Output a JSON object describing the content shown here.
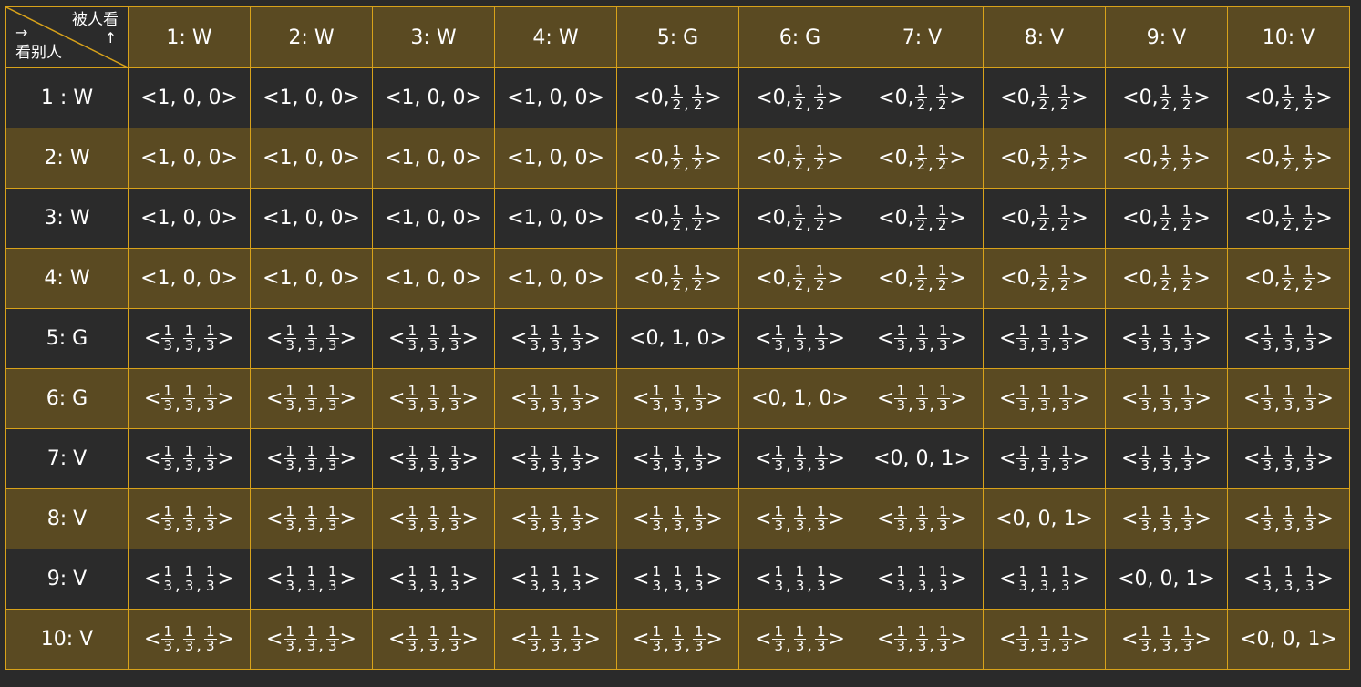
{
  "corner": {
    "top_label": "被人看",
    "up_arrow": "↑",
    "right_arrow": "→",
    "bottom_label": "看别人"
  },
  "columns": [
    "1: W",
    "2: W",
    "3: W",
    "4: W",
    "5: G",
    "6: G",
    "7: V",
    "8: V",
    "9: V",
    "10: V"
  ],
  "rows": [
    {
      "label": "1 : W",
      "cells": [
        "<1, 0, 0>",
        "<1, 0, 0>",
        "<1, 0, 0>",
        "<1, 0, 0>",
        "<0, 1/2, 1/2>",
        "<0, 1/2, 1/2>",
        "<0, 1/2, 1/2>",
        "<0, 1/2, 1/2>",
        "<0, 1/2, 1/2>",
        "<0, 1/2, 1/2>"
      ]
    },
    {
      "label": "2: W",
      "cells": [
        "<1, 0, 0>",
        "<1, 0, 0>",
        "<1, 0, 0>",
        "<1, 0, 0>",
        "<0, 1/2, 1/2>",
        "<0, 1/2, 1/2>",
        "<0, 1/2, 1/2>",
        "<0, 1/2, 1/2>",
        "<0, 1/2, 1/2>",
        "<0, 1/2, 1/2>"
      ]
    },
    {
      "label": "3: W",
      "cells": [
        "<1, 0, 0>",
        "<1, 0, 0>",
        "<1, 0, 0>",
        "<1, 0, 0>",
        "<0, 1/2, 1/2>",
        "<0, 1/2, 1/2>",
        "<0, 1/2, 1/2>",
        "<0, 1/2, 1/2>",
        "<0, 1/2, 1/2>",
        "<0, 1/2, 1/2>"
      ]
    },
    {
      "label": "4: W",
      "cells": [
        "<1, 0, 0>",
        "<1, 0, 0>",
        "<1, 0, 0>",
        "<1, 0, 0>",
        "<0, 1/2, 1/2>",
        "<0, 1/2, 1/2>",
        "<0, 1/2, 1/2>",
        "<0, 1/2, 1/2>",
        "<0, 1/2, 1/2>",
        "<0, 1/2, 1/2>"
      ]
    },
    {
      "label": "5: G",
      "cells": [
        "<1/3, 1/3, 1/3>",
        "<1/3, 1/3, 1/3>",
        "<1/3, 1/3, 1/3>",
        "<1/3, 1/3, 1/3>",
        "<0, 1, 0>",
        "<1/3, 1/3, 1/3>",
        "<1/3, 1/3, 1/3>",
        "<1/3, 1/3, 1/3>",
        "<1/3, 1/3, 1/3>",
        "<1/3, 1/3, 1/3>"
      ]
    },
    {
      "label": "6: G",
      "cells": [
        "<1/3, 1/3, 1/3>",
        "<1/3, 1/3, 1/3>",
        "<1/3, 1/3, 1/3>",
        "<1/3, 1/3, 1/3>",
        "<1/3, 1/3, 1/3>",
        "<0, 1, 0>",
        "<1/3, 1/3, 1/3>",
        "<1/3, 1/3, 1/3>",
        "<1/3, 1/3, 1/3>",
        "<1/3, 1/3, 1/3>"
      ]
    },
    {
      "label": "7: V",
      "cells": [
        "<1/3, 1/3, 1/3>",
        "<1/3, 1/3, 1/3>",
        "<1/3, 1/3, 1/3>",
        "<1/3, 1/3, 1/3>",
        "<1/3, 1/3, 1/3>",
        "<1/3, 1/3, 1/3>",
        "<0, 0, 1>",
        "<1/3, 1/3, 1/3>",
        "<1/3, 1/3, 1/3>",
        "<1/3, 1/3, 1/3>"
      ]
    },
    {
      "label": "8: V",
      "cells": [
        "<1/3, 1/3, 1/3>",
        "<1/3, 1/3, 1/3>",
        "<1/3, 1/3, 1/3>",
        "<1/3, 1/3, 1/3>",
        "<1/3, 1/3, 1/3>",
        "<1/3, 1/3, 1/3>",
        "<1/3, 1/3, 1/3>",
        "<0, 0, 1>",
        "<1/3, 1/3, 1/3>",
        "<1/3, 1/3, 1/3>"
      ]
    },
    {
      "label": "9: V",
      "cells": [
        "<1/3, 1/3, 1/3>",
        "<1/3, 1/3, 1/3>",
        "<1/3, 1/3, 1/3>",
        "<1/3, 1/3, 1/3>",
        "<1/3, 1/3, 1/3>",
        "<1/3, 1/3, 1/3>",
        "<1/3, 1/3, 1/3>",
        "<1/3, 1/3, 1/3>",
        "<0, 0, 1>",
        "<1/3, 1/3, 1/3>"
      ]
    },
    {
      "label": "10: V",
      "cells": [
        "<1/3, 1/3, 1/3>",
        "<1/3, 1/3, 1/3>",
        "<1/3, 1/3, 1/3>",
        "<1/3, 1/3, 1/3>",
        "<1/3, 1/3, 1/3>",
        "<1/3, 1/3, 1/3>",
        "<1/3, 1/3, 1/3>",
        "<1/3, 1/3, 1/3>",
        "<1/3, 1/3, 1/3>",
        "<0, 0, 1>"
      ]
    }
  ],
  "colors": {
    "border": "#d8a21a",
    "dark_row": "#2b2b2b",
    "gold_row": "#5a4a22",
    "text": "#ffffff"
  }
}
